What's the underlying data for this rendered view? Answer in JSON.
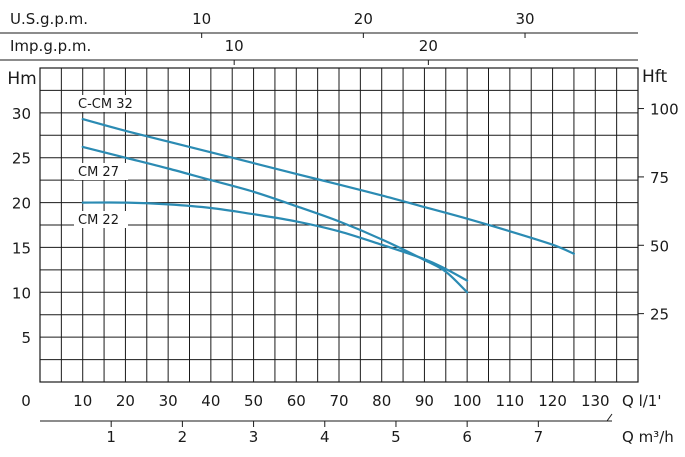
{
  "chart_data": {
    "type": "line",
    "title": "",
    "xlabel": "Q l/1'",
    "ylabel": "Hm",
    "ylabel_right": "Hft",
    "xlim": [
      0,
      140
    ],
    "ylim": [
      0,
      35
    ],
    "grid": true,
    "x_ticks": [
      0,
      10,
      20,
      30,
      40,
      50,
      60,
      70,
      80,
      90,
      100,
      110,
      120,
      130
    ],
    "y_ticks": [
      5,
      10,
      15,
      20,
      25,
      30
    ],
    "right_ticks": [
      {
        "label": "25",
        "hm": 7.62
      },
      {
        "label": "50",
        "hm": 15.24
      },
      {
        "label": "75",
        "hm": 22.86
      },
      {
        "label": "100",
        "hm": 30.48
      }
    ],
    "top_axes": [
      {
        "label": "U.S.g.p.m.",
        "lpm_per_unit": 3.785,
        "ticks": [
          "10",
          "20",
          "30"
        ],
        "tick_values": [
          10,
          20,
          30
        ]
      },
      {
        "label": "Imp.g.p.m.",
        "lpm_per_unit": 4.546,
        "ticks": [
          "10",
          "20"
        ],
        "tick_values": [
          10,
          20
        ]
      }
    ],
    "bottom_axis": {
      "label": "Q m³/h",
      "lpm_per_unit": 16.667,
      "ticks": [
        "1",
        "2",
        "3",
        "4",
        "5",
        "6",
        "7"
      ],
      "tick_values": [
        1,
        2,
        3,
        4,
        5,
        6,
        7
      ]
    },
    "series": [
      {
        "name": "C-CM 32",
        "x": [
          10,
          20,
          30,
          40,
          50,
          60,
          70,
          80,
          90,
          100,
          110,
          120,
          125
        ],
        "y": [
          29.3,
          28.0,
          26.8,
          25.6,
          24.4,
          23.2,
          22.0,
          20.8,
          19.5,
          18.2,
          16.8,
          15.3,
          14.3
        ],
        "color": "#2b8bb3"
      },
      {
        "name": "CM 27",
        "x": [
          10,
          20,
          30,
          40,
          50,
          60,
          70,
          80,
          90,
          95,
          100
        ],
        "y": [
          26.2,
          25.0,
          23.8,
          22.5,
          21.2,
          19.6,
          17.9,
          15.9,
          13.6,
          12.3,
          10.0
        ],
        "color": "#2b8bb3"
      },
      {
        "name": "CM 22",
        "x": [
          10,
          20,
          30,
          40,
          50,
          60,
          70,
          80,
          90,
          95,
          100
        ],
        "y": [
          20.0,
          20.0,
          19.8,
          19.4,
          18.7,
          17.9,
          16.8,
          15.3,
          13.7,
          12.6,
          11.3
        ],
        "color": "#2b8bb3"
      }
    ]
  }
}
